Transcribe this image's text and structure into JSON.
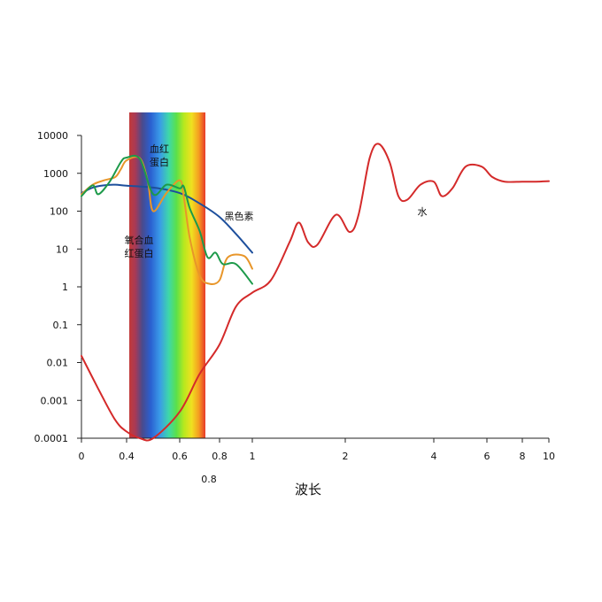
{
  "chart_data": {
    "type": "line",
    "xlabel": "波长",
    "ylabel": "",
    "y_scale": "log",
    "ylim": [
      0.0001,
      10000
    ],
    "y_ticks": [
      "0.0001",
      "0.001",
      "0.01",
      "0.1",
      "1",
      "10",
      "100",
      "1000",
      "10000"
    ],
    "x_ticks_row1": [
      "0",
      "0.4",
      "0.6",
      "0.8",
      "1",
      "2",
      "4",
      "6",
      "8",
      "10"
    ],
    "x_ticks_row2": [
      "0.8"
    ],
    "visible_spectrum_band": {
      "from": 0.4,
      "to": 0.73
    },
    "annotations": {
      "hemoglobin": [
        "血红",
        "蛋白"
      ],
      "oxyhemoglobin": [
        "氧合血",
        "红蛋白"
      ],
      "melanin": [
        "黑色素"
      ],
      "water": [
        "水"
      ]
    },
    "series": [
      {
        "key": "water",
        "color": "#d42a2a",
        "points": [
          [
            0.0,
            0.015
          ],
          [
            0.15,
            0.002
          ],
          [
            0.3,
            0.0003
          ],
          [
            0.4,
            0.00015
          ],
          [
            0.45,
            0.0001
          ],
          [
            0.5,
            0.0001
          ],
          [
            0.6,
            0.0005
          ],
          [
            0.7,
            0.005
          ],
          [
            0.8,
            0.03
          ],
          [
            0.9,
            0.3
          ],
          [
            1.0,
            0.7
          ],
          [
            1.2,
            1.5
          ],
          [
            1.4,
            15
          ],
          [
            1.5,
            50
          ],
          [
            1.6,
            15
          ],
          [
            1.7,
            13
          ],
          [
            1.9,
            80
          ],
          [
            2.1,
            28
          ],
          [
            2.3,
            80
          ],
          [
            2.55,
            2500
          ],
          [
            2.75,
            6000
          ],
          [
            3.0,
            2000
          ],
          [
            3.2,
            250
          ],
          [
            3.4,
            200
          ],
          [
            3.7,
            500
          ],
          [
            4.0,
            600
          ],
          [
            4.3,
            250
          ],
          [
            4.7,
            400
          ],
          [
            5.2,
            1500
          ],
          [
            5.8,
            1500
          ],
          [
            6.3,
            800
          ],
          [
            7.0,
            600
          ],
          [
            8.0,
            600
          ],
          [
            9.0,
            600
          ],
          [
            10.0,
            620
          ]
        ]
      },
      {
        "key": "melanin",
        "color": "#1d4f9c",
        "points": [
          [
            0.0,
            300
          ],
          [
            0.1,
            420
          ],
          [
            0.2,
            480
          ],
          [
            0.3,
            500
          ],
          [
            0.4,
            470
          ],
          [
            0.5,
            420
          ],
          [
            0.6,
            300
          ],
          [
            0.7,
            160
          ],
          [
            0.8,
            70
          ],
          [
            0.9,
            25
          ],
          [
            1.0,
            8
          ]
        ]
      },
      {
        "key": "hemoglobin",
        "color": "#e8962a",
        "points": [
          [
            0.0,
            280
          ],
          [
            0.1,
            500
          ],
          [
            0.2,
            650
          ],
          [
            0.3,
            800
          ],
          [
            0.35,
            1300
          ],
          [
            0.4,
            2200
          ],
          [
            0.45,
            2500
          ],
          [
            0.48,
            600
          ],
          [
            0.5,
            100
          ],
          [
            0.55,
            300
          ],
          [
            0.6,
            650
          ],
          [
            0.62,
            250
          ],
          [
            0.65,
            20
          ],
          [
            0.7,
            2
          ],
          [
            0.75,
            1.2
          ],
          [
            0.8,
            1.5
          ],
          [
            0.85,
            6
          ],
          [
            0.95,
            6.5
          ],
          [
            1.0,
            3
          ]
        ]
      },
      {
        "key": "oxyhemoglobin",
        "color": "#1d9a4a",
        "points": [
          [
            0.0,
            250
          ],
          [
            0.1,
            480
          ],
          [
            0.15,
            280
          ],
          [
            0.25,
            600
          ],
          [
            0.35,
            2000
          ],
          [
            0.4,
            2600
          ],
          [
            0.45,
            2400
          ],
          [
            0.5,
            280
          ],
          [
            0.55,
            500
          ],
          [
            0.6,
            400
          ],
          [
            0.62,
            450
          ],
          [
            0.65,
            120
          ],
          [
            0.7,
            30
          ],
          [
            0.74,
            6
          ],
          [
            0.78,
            8
          ],
          [
            0.82,
            4
          ],
          [
            0.9,
            4
          ],
          [
            1.0,
            1.2
          ]
        ]
      }
    ]
  }
}
